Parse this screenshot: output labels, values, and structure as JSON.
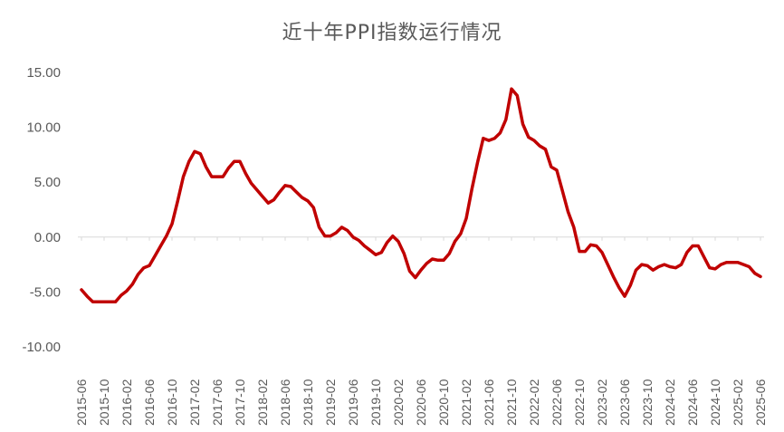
{
  "chart_data": {
    "type": "line",
    "title": "近十年PPI指数运行情况",
    "xlabel": "",
    "ylabel": "",
    "ylim": [
      -10,
      15
    ],
    "yticks": [
      "-10.00",
      "-5.00",
      "0.00",
      "5.00",
      "10.00",
      "15.00"
    ],
    "ytick_values": [
      -10,
      -5,
      0,
      5,
      10,
      15
    ],
    "xtick_labels": [
      "2015-06",
      "2015-10",
      "2016-02",
      "2016-06",
      "2016-10",
      "2017-02",
      "2017-06",
      "2017-10",
      "2018-02",
      "2018-06",
      "2018-10",
      "2019-02",
      "2019-06",
      "2019-10",
      "2020-02",
      "2020-06",
      "2020-10",
      "2021-02",
      "2021-06",
      "2021-10",
      "2022-02",
      "2022-06",
      "2022-10",
      "2023-02",
      "2023-06",
      "2023-10",
      "2024-02",
      "2024-06",
      "2024-10",
      "2025-02",
      "2025-06"
    ],
    "grid": false,
    "series": [
      {
        "color": "#C00000",
        "x": [
          "2015-06",
          "2015-07",
          "2015-08",
          "2015-09",
          "2015-10",
          "2015-11",
          "2015-12",
          "2016-01",
          "2016-02",
          "2016-03",
          "2016-04",
          "2016-05",
          "2016-06",
          "2016-07",
          "2016-08",
          "2016-09",
          "2016-10",
          "2016-11",
          "2016-12",
          "2017-01",
          "2017-02",
          "2017-03",
          "2017-04",
          "2017-05",
          "2017-06",
          "2017-07",
          "2017-08",
          "2017-09",
          "2017-10",
          "2017-11",
          "2017-12",
          "2018-01",
          "2018-02",
          "2018-03",
          "2018-04",
          "2018-05",
          "2018-06",
          "2018-07",
          "2018-08",
          "2018-09",
          "2018-10",
          "2018-11",
          "2018-12",
          "2019-01",
          "2019-02",
          "2019-03",
          "2019-04",
          "2019-05",
          "2019-06",
          "2019-07",
          "2019-08",
          "2019-09",
          "2019-10",
          "2019-11",
          "2019-12",
          "2020-01",
          "2020-02",
          "2020-03",
          "2020-04",
          "2020-05",
          "2020-06",
          "2020-07",
          "2020-08",
          "2020-09",
          "2020-10",
          "2020-11",
          "2020-12",
          "2021-01",
          "2021-02",
          "2021-03",
          "2021-04",
          "2021-05",
          "2021-06",
          "2021-07",
          "2021-08",
          "2021-09",
          "2021-10",
          "2021-11",
          "2021-12",
          "2022-01",
          "2022-02",
          "2022-03",
          "2022-04",
          "2022-05",
          "2022-06",
          "2022-07",
          "2022-08",
          "2022-09",
          "2022-10",
          "2022-11",
          "2022-12",
          "2023-01",
          "2023-02",
          "2023-03",
          "2023-04",
          "2023-05",
          "2023-06",
          "2023-07",
          "2023-08",
          "2023-09",
          "2023-10",
          "2023-11",
          "2023-12",
          "2024-01",
          "2024-02",
          "2024-03",
          "2024-04",
          "2024-05",
          "2024-06",
          "2024-07",
          "2024-08",
          "2024-09",
          "2024-10",
          "2024-11",
          "2024-12",
          "2025-01",
          "2025-02",
          "2025-03",
          "2025-04",
          "2025-05",
          "2025-06"
        ],
        "values": [
          -4.8,
          -5.4,
          -5.9,
          -5.9,
          -5.9,
          -5.9,
          -5.9,
          -5.3,
          -4.9,
          -4.3,
          -3.4,
          -2.8,
          -2.6,
          -1.7,
          -0.8,
          0.1,
          1.2,
          3.3,
          5.5,
          6.9,
          7.8,
          7.6,
          6.4,
          5.5,
          5.5,
          5.5,
          6.3,
          6.9,
          6.9,
          5.8,
          4.9,
          4.3,
          3.7,
          3.1,
          3.4,
          4.1,
          4.7,
          4.6,
          4.1,
          3.6,
          3.3,
          2.7,
          0.9,
          0.1,
          0.1,
          0.4,
          0.9,
          0.6,
          0.0,
          -0.3,
          -0.8,
          -1.2,
          -1.6,
          -1.4,
          -0.5,
          0.1,
          -0.4,
          -1.5,
          -3.1,
          -3.7,
          -3.0,
          -2.4,
          -2.0,
          -2.1,
          -2.1,
          -1.5,
          -0.4,
          0.3,
          1.7,
          4.4,
          6.8,
          9.0,
          8.8,
          9.0,
          9.5,
          10.7,
          13.5,
          12.9,
          10.3,
          9.1,
          8.8,
          8.3,
          8.0,
          6.4,
          6.1,
          4.2,
          2.3,
          0.9,
          -1.3,
          -1.3,
          -0.7,
          -0.8,
          -1.4,
          -2.5,
          -3.6,
          -4.6,
          -5.4,
          -4.4,
          -3.0,
          -2.5,
          -2.6,
          -3.0,
          -2.7,
          -2.5,
          -2.7,
          -2.8,
          -2.5,
          -1.4,
          -0.8,
          -0.8,
          -1.8,
          -2.8,
          -2.9,
          -2.5,
          -2.3,
          -2.3,
          -2.3,
          -2.5,
          -2.7,
          -3.3,
          -3.6
        ]
      }
    ]
  }
}
